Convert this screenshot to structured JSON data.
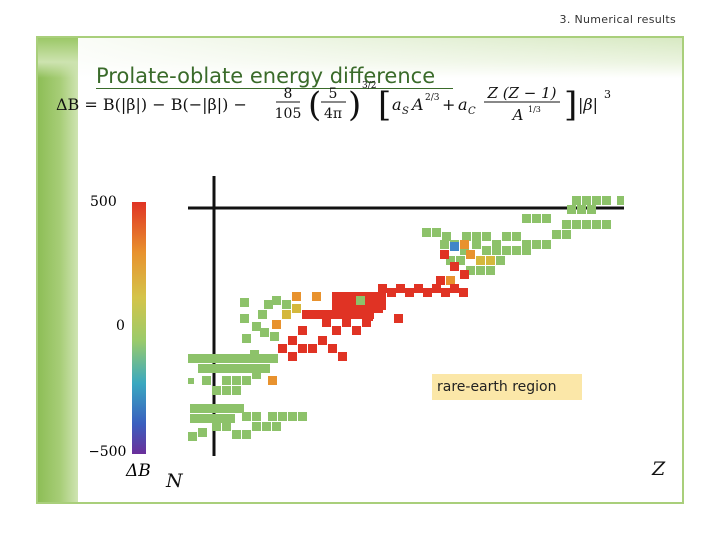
{
  "header": {
    "section": "3. Numerical results"
  },
  "slide": {
    "title": "Prolate-oblate energy difference"
  },
  "formula": {
    "lhs": "ΔB = B(|β|) − B(−|β|) − ",
    "frac_num": "8",
    "frac_den": "105",
    "inner_num": "5",
    "inner_den": "4π",
    "exponent": "3/2",
    "term1": "a",
    "term1_sub": "S",
    "term1_A": "A",
    "term1_exp": "2/3",
    "plus": "+",
    "term2": "a",
    "term2_sub": "C",
    "term2_num": "Z (Z − 1)",
    "term2_den": "A",
    "term2_den_exp": "1/3",
    "tail": "|β|",
    "tail_exp": "3"
  },
  "colorbar": {
    "ticks": [
      "500",
      "0",
      "−500"
    ],
    "label": "ΔB",
    "colors": [
      "#e03324",
      "#e8922e",
      "#d4c44a",
      "#9acb6a",
      "#3aa8c0",
      "#3a5fbf",
      "#6a2f9a"
    ]
  },
  "axes": {
    "x_label": "Z",
    "y_label": "N"
  },
  "annotation": {
    "region": "rare-earth region"
  },
  "cells_colors": {
    "red": "#e03324",
    "orange": "#e8922e",
    "yellow": "#d4b83c",
    "green": "#8dc26a",
    "blue": "#3f86c8"
  }
}
